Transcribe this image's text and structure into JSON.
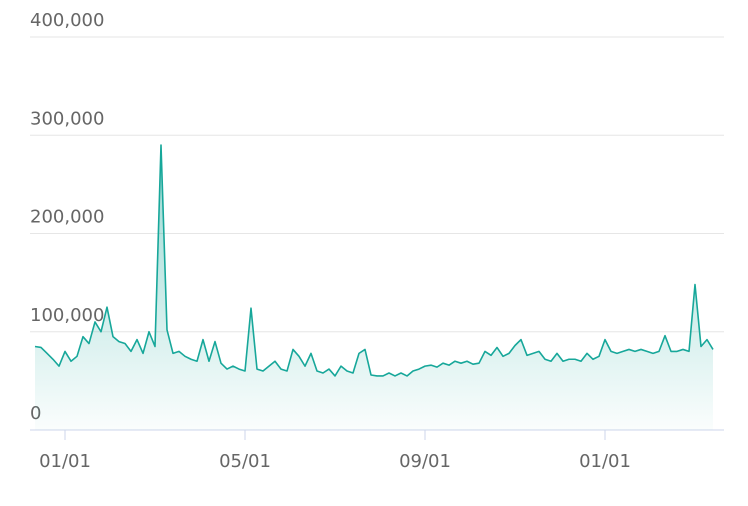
{
  "chart_data": {
    "type": "area",
    "categories": [
      null,
      null,
      null,
      null,
      null,
      "01/01",
      null,
      null,
      null,
      null,
      null,
      null,
      null,
      null,
      null,
      null,
      null,
      null,
      null,
      null,
      null,
      null,
      null,
      null,
      null,
      null,
      null,
      null,
      null,
      null,
      null,
      null,
      null,
      null,
      null,
      "05/01",
      null,
      null,
      null,
      null,
      null,
      null,
      null,
      null,
      null,
      null,
      null,
      null,
      null,
      null,
      null,
      null,
      null,
      null,
      null,
      null,
      null,
      null,
      null,
      null,
      null,
      null,
      null,
      null,
      null,
      "09/01",
      null,
      null,
      null,
      null,
      null,
      null,
      null,
      null,
      null,
      null,
      null,
      null,
      null,
      null,
      null,
      null,
      null,
      null,
      null,
      null,
      null,
      null,
      null,
      null,
      null,
      null,
      null,
      null,
      null,
      "01/01",
      null,
      null,
      null,
      null,
      null,
      null,
      null,
      null,
      null,
      null,
      null,
      null,
      null,
      null,
      null,
      null,
      null,
      null
    ],
    "values": [
      85000,
      84000,
      78000,
      72000,
      65000,
      80000,
      70000,
      75000,
      95000,
      88000,
      110000,
      100000,
      125000,
      95000,
      90000,
      88000,
      80000,
      92000,
      78000,
      100000,
      85000,
      290000,
      102000,
      78000,
      80000,
      75000,
      72000,
      70000,
      92000,
      70000,
      90000,
      68000,
      62000,
      65000,
      62000,
      60000,
      124000,
      62000,
      60000,
      65000,
      70000,
      62000,
      60000,
      82000,
      75000,
      65000,
      78000,
      60000,
      58000,
      62000,
      55000,
      65000,
      60000,
      58000,
      78000,
      82000,
      56000,
      55000,
      55000,
      58000,
      55000,
      58000,
      55000,
      60000,
      62000,
      65000,
      66000,
      64000,
      68000,
      66000,
      70000,
      68000,
      70000,
      67000,
      68000,
      80000,
      76000,
      84000,
      75000,
      78000,
      86000,
      92000,
      76000,
      78000,
      80000,
      72000,
      70000,
      78000,
      70000,
      72000,
      72000,
      70000,
      78000,
      72000,
      75000,
      92000,
      80000,
      78000,
      80000,
      82000,
      80000,
      82000,
      80000,
      78000,
      80000,
      96000,
      80000,
      80000,
      82000,
      80000,
      148000,
      85000,
      92000,
      82000
    ],
    "color": "#17a79a",
    "ylim": [
      0,
      400000
    ],
    "yticks": [
      0,
      {
        "value": 100000,
        "label": "100,000"
      },
      {
        "value": 200000,
        "label": "200,000"
      },
      {
        "value": 300000,
        "label": "300,000"
      },
      {
        "value": 400000,
        "label": "400,000"
      }
    ],
    "grid": true
  }
}
